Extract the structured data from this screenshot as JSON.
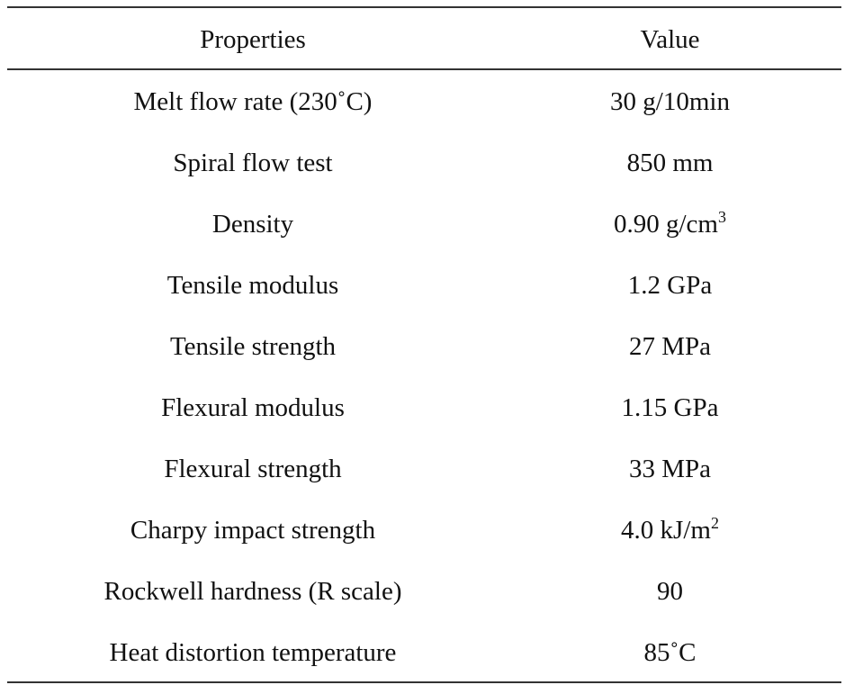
{
  "table": {
    "headers": [
      "Properties",
      "Value"
    ],
    "rows": [
      {
        "property": "Melt flow rate (230˚C)",
        "value": "30 g/10min",
        "sup": ""
      },
      {
        "property": "Spiral flow test",
        "value": "850 mm",
        "sup": ""
      },
      {
        "property": "Density",
        "value": "0.90 g/cm",
        "sup": "3"
      },
      {
        "property": "Tensile modulus",
        "value": "1.2 GPa",
        "sup": ""
      },
      {
        "property": "Tensile strength",
        "value": "27 MPa",
        "sup": ""
      },
      {
        "property": "Flexural modulus",
        "value": "1.15 GPa",
        "sup": ""
      },
      {
        "property": "Flexural strength",
        "value": "33 MPa",
        "sup": ""
      },
      {
        "property": "Charpy impact strength",
        "value": "4.0 kJ/m",
        "sup": "2"
      },
      {
        "property": "Rockwell hardness (R scale)",
        "value": "90",
        "sup": ""
      },
      {
        "property": "Heat distortion temperature",
        "value": "85˚C",
        "sup": ""
      }
    ]
  }
}
